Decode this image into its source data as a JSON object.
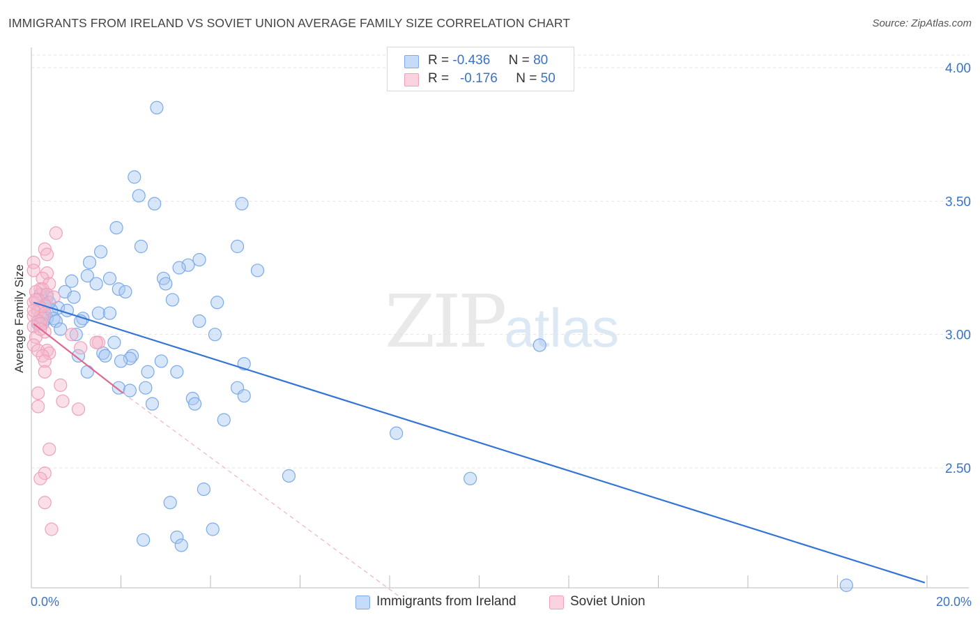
{
  "header": {
    "title": "IMMIGRANTS FROM IRELAND VS SOVIET UNION AVERAGE FAMILY SIZE CORRELATION CHART",
    "source": "Source: ZipAtlas.com"
  },
  "watermark": {
    "big": "ZIP",
    "small": "atlas"
  },
  "legend": {
    "rows": [
      {
        "r_label": "R =",
        "r_value": "-0.436",
        "n_label": "N =",
        "n_value": "80",
        "color": "#a9c8f2"
      },
      {
        "r_label": "R =",
        "r_value": "-0.176",
        "n_label": "N =",
        "n_value": "50",
        "color": "#f5b8cb"
      }
    ]
  },
  "bottom_legend": {
    "items": [
      {
        "label": "Immigrants from Ireland",
        "color": "#a9c8f2"
      },
      {
        "label": "Soviet Union",
        "color": "#f5b8cb"
      }
    ]
  },
  "chart_data": {
    "type": "scatter",
    "title": "IMMIGRANTS FROM IRELAND VS SOVIET UNION AVERAGE FAMILY SIZE CORRELATION CHART",
    "xlabel": "",
    "ylabel": "Average Family Size",
    "xlim": [
      0,
      20
    ],
    "ylim": [
      2.0,
      4.12
    ],
    "x_tick_labels": [
      "0.0%",
      "20.0%"
    ],
    "y_ticks": [
      4.0,
      3.5,
      3.0,
      2.5
    ],
    "y_tick_labels": [
      "4.00",
      "3.50",
      "3.00",
      "2.50"
    ],
    "grid": "horizontal dashed",
    "series": [
      {
        "name": "Immigrants from Ireland",
        "color": "#7aaae8",
        "line_color": "#3474d4",
        "trend": {
          "x": [
            0.05,
            19.95
          ],
          "y": [
            3.12,
            2.07
          ],
          "style": "solid"
        },
        "points": [
          [
            2.8,
            3.85
          ],
          [
            2.3,
            3.59
          ],
          [
            2.4,
            3.52
          ],
          [
            2.75,
            3.49
          ],
          [
            4.7,
            3.49
          ],
          [
            1.9,
            3.4
          ],
          [
            2.45,
            3.33
          ],
          [
            4.6,
            3.33
          ],
          [
            1.55,
            3.31
          ],
          [
            3.75,
            3.28
          ],
          [
            1.3,
            3.27
          ],
          [
            3.5,
            3.26
          ],
          [
            3.3,
            3.25
          ],
          [
            5.05,
            3.24
          ],
          [
            1.25,
            3.22
          ],
          [
            1.75,
            3.21
          ],
          [
            2.95,
            3.21
          ],
          [
            0.9,
            3.2
          ],
          [
            1.45,
            3.19
          ],
          [
            3.0,
            3.19
          ],
          [
            1.95,
            3.17
          ],
          [
            0.75,
            3.16
          ],
          [
            2.1,
            3.16
          ],
          [
            0.95,
            3.14
          ],
          [
            0.35,
            3.14
          ],
          [
            3.15,
            3.13
          ],
          [
            4.15,
            3.12
          ],
          [
            0.6,
            3.1
          ],
          [
            0.45,
            3.09
          ],
          [
            0.8,
            3.09
          ],
          [
            0.3,
            3.08
          ],
          [
            1.5,
            3.08
          ],
          [
            1.75,
            3.08
          ],
          [
            0.2,
            3.07
          ],
          [
            0.35,
            3.06
          ],
          [
            1.15,
            3.06
          ],
          [
            0.5,
            3.06
          ],
          [
            1.1,
            3.05
          ],
          [
            0.55,
            3.05
          ],
          [
            3.75,
            3.05
          ],
          [
            0.25,
            3.04
          ],
          [
            0.15,
            3.04
          ],
          [
            0.65,
            3.02
          ],
          [
            1.0,
            3.0
          ],
          [
            4.1,
            3.0
          ],
          [
            1.85,
            2.97
          ],
          [
            11.35,
            2.96
          ],
          [
            1.6,
            2.93
          ],
          [
            1.05,
            2.92
          ],
          [
            2.25,
            2.92
          ],
          [
            1.65,
            2.92
          ],
          [
            2.2,
            2.91
          ],
          [
            2.0,
            2.9
          ],
          [
            2.9,
            2.9
          ],
          [
            4.75,
            2.89
          ],
          [
            2.6,
            2.86
          ],
          [
            3.25,
            2.86
          ],
          [
            1.25,
            2.86
          ],
          [
            2.55,
            2.8
          ],
          [
            4.6,
            2.8
          ],
          [
            1.95,
            2.8
          ],
          [
            2.2,
            2.79
          ],
          [
            3.6,
            2.76
          ],
          [
            4.75,
            2.77
          ],
          [
            3.65,
            2.74
          ],
          [
            2.7,
            2.74
          ],
          [
            4.3,
            2.68
          ],
          [
            8.15,
            2.63
          ],
          [
            5.75,
            2.47
          ],
          [
            9.8,
            2.46
          ],
          [
            3.85,
            2.42
          ],
          [
            3.1,
            2.37
          ],
          [
            4.05,
            2.27
          ],
          [
            3.25,
            2.24
          ],
          [
            2.5,
            2.23
          ],
          [
            3.35,
            2.21
          ],
          [
            18.2,
            2.06
          ],
          [
            0.3,
            3.11
          ],
          [
            0.4,
            3.12
          ],
          [
            0.2,
            3.15
          ]
        ]
      },
      {
        "name": "Soviet Union",
        "color": "#f0a0ba",
        "line_color": "#e06890",
        "trend": {
          "x": [
            0.05,
            2.05
          ],
          "y": [
            3.04,
            2.78
          ],
          "style": "solid"
        },
        "trend_extension": {
          "x": [
            2.05,
            8.2
          ],
          "y": [
            2.78,
            2.02
          ],
          "style": "dashed"
        },
        "points": [
          [
            0.55,
            3.38
          ],
          [
            0.3,
            3.32
          ],
          [
            0.35,
            3.3
          ],
          [
            0.05,
            3.27
          ],
          [
            0.05,
            3.24
          ],
          [
            0.35,
            3.23
          ],
          [
            0.25,
            3.21
          ],
          [
            0.4,
            3.19
          ],
          [
            0.2,
            3.17
          ],
          [
            0.25,
            3.17
          ],
          [
            0.1,
            3.16
          ],
          [
            0.35,
            3.15
          ],
          [
            0.5,
            3.14
          ],
          [
            0.15,
            3.13
          ],
          [
            0.05,
            3.12
          ],
          [
            0.3,
            3.11
          ],
          [
            0.2,
            3.1
          ],
          [
            0.15,
            3.09
          ],
          [
            0.3,
            3.08
          ],
          [
            0.05,
            3.07
          ],
          [
            0.25,
            3.06
          ],
          [
            0.15,
            3.05
          ],
          [
            0.2,
            3.04
          ],
          [
            0.05,
            3.03
          ],
          [
            0.3,
            3.01
          ],
          [
            0.9,
            3.0
          ],
          [
            0.1,
            2.99
          ],
          [
            1.5,
            2.97
          ],
          [
            1.45,
            2.97
          ],
          [
            0.05,
            2.96
          ],
          [
            1.1,
            2.95
          ],
          [
            0.15,
            2.94
          ],
          [
            0.35,
            2.94
          ],
          [
            0.4,
            2.93
          ],
          [
            0.25,
            2.92
          ],
          [
            0.3,
            2.9
          ],
          [
            0.3,
            2.86
          ],
          [
            0.65,
            2.81
          ],
          [
            0.15,
            2.78
          ],
          [
            0.7,
            2.75
          ],
          [
            0.15,
            2.73
          ],
          [
            1.05,
            2.72
          ],
          [
            0.4,
            2.57
          ],
          [
            0.3,
            2.48
          ],
          [
            0.2,
            2.46
          ],
          [
            0.3,
            2.37
          ],
          [
            0.45,
            2.27
          ],
          [
            0.1,
            3.13
          ],
          [
            0.2,
            3.02
          ],
          [
            0.05,
            3.09
          ]
        ]
      }
    ]
  }
}
